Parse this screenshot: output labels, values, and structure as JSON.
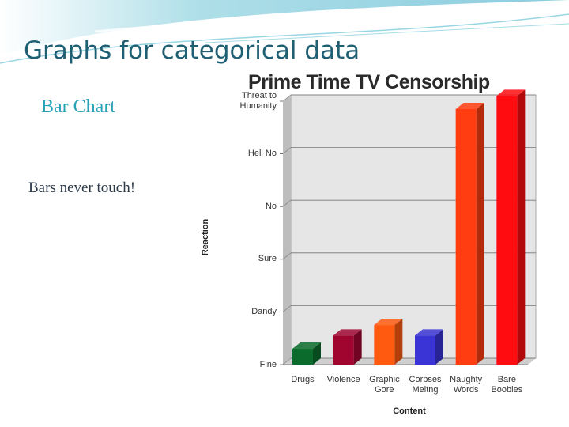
{
  "slide": {
    "title": "Graphs for categorical data",
    "subtitle": "Bar Chart",
    "bullet": "Bars never touch!"
  },
  "colors": {
    "title": "#1f5f73",
    "subtitle": "#27a3b8",
    "plot_background": "#e6e6e6",
    "swoosh": "#6cc4d6"
  },
  "chart_data": {
    "type": "bar",
    "title": "Prime Time TV Censorship",
    "xlabel": "Content",
    "ylabel": "Reaction",
    "categories": [
      "Drugs",
      "Violence",
      "Graphic Gore",
      "Corpses Meltng",
      "Naughty Words",
      "Bare Boobies"
    ],
    "y_levels": [
      "Fine",
      "Dandy",
      "Sure",
      "No",
      "Hell No",
      "Threat to Humanity"
    ],
    "values": [
      0.3,
      0.55,
      0.75,
      0.55,
      4.85,
      5.1
    ],
    "ylim": [
      0,
      5
    ],
    "bar_colors": [
      "#0a6b2c",
      "#a00530",
      "#ff5a10",
      "#3a33d6",
      "#ff3d10",
      "#ff0c10"
    ],
    "grid": true,
    "style": "3d"
  }
}
